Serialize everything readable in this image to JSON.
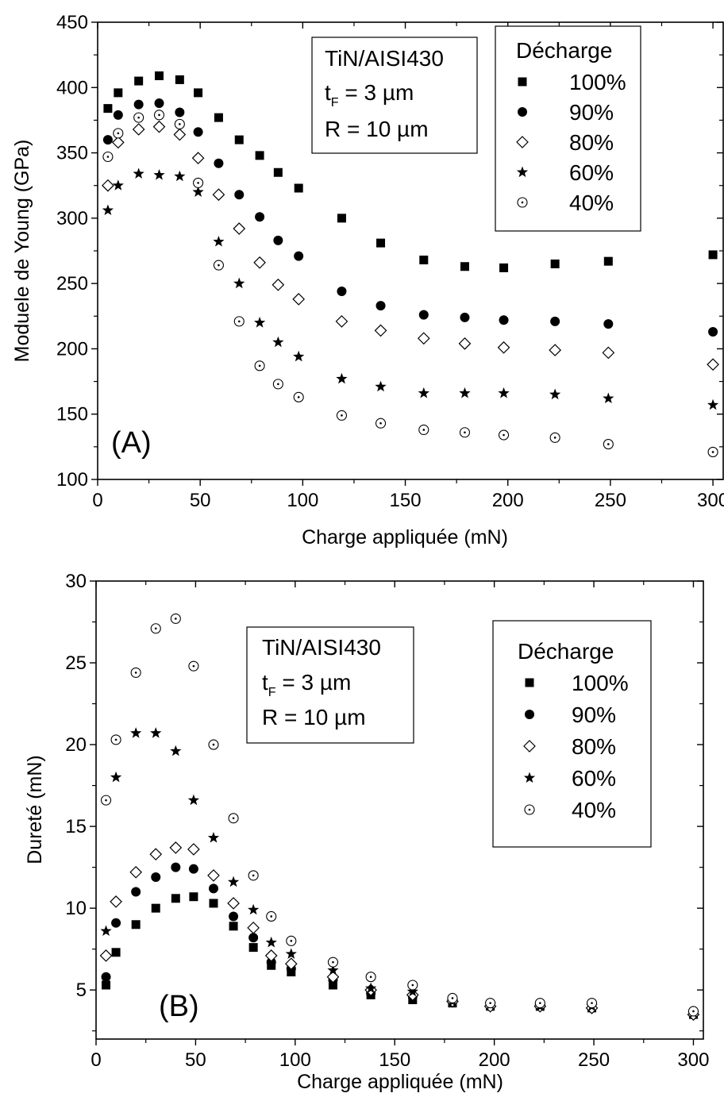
{
  "chart_data": [
    {
      "type": "scatter",
      "panel_label": "(A)",
      "xlabel": "Charge appliquée (mN)",
      "ylabel": "Moduele de Young (GPa)",
      "xlim": [
        0,
        305
      ],
      "ylim": [
        100,
        450
      ],
      "xticks": [
        "0",
        "50",
        "100",
        "150",
        "200",
        "250",
        "300"
      ],
      "yticks": [
        "100",
        "150",
        "200",
        "250",
        "300",
        "350",
        "400",
        "450"
      ],
      "annotation": {
        "line1": "TiN/AISI430",
        "line2_main": "t",
        "line2_sub": "F",
        "line2_rest": " = 3 µm",
        "line3": "R = 10 µm"
      },
      "legend": {
        "title": "Décharge",
        "position": "top-right"
      },
      "x": [
        5,
        10,
        20,
        30,
        40,
        49,
        59,
        69,
        79,
        88,
        98,
        119,
        138,
        159,
        179,
        198,
        223,
        249,
        300
      ],
      "series": [
        {
          "name": "100%",
          "marker": "square",
          "values": [
            384,
            396,
            405,
            409,
            406,
            396,
            377,
            360,
            348,
            335,
            323,
            300,
            281,
            268,
            263,
            262,
            265,
            267,
            272
          ]
        },
        {
          "name": "90%",
          "marker": "circle",
          "values": [
            360,
            379,
            387,
            388,
            381,
            366,
            342,
            318,
            301,
            283,
            271,
            244,
            233,
            226,
            224,
            222,
            221,
            219,
            213
          ]
        },
        {
          "name": "80%",
          "marker": "diamond-open",
          "values": [
            325,
            358,
            368,
            370,
            364,
            346,
            318,
            292,
            266,
            249,
            238,
            221,
            214,
            208,
            204,
            201,
            199,
            197,
            188
          ]
        },
        {
          "name": "60%",
          "marker": "star",
          "values": [
            306,
            325,
            334,
            333,
            332,
            320,
            282,
            250,
            220,
            205,
            194,
            177,
            171,
            166,
            166,
            166,
            165,
            162,
            157
          ]
        },
        {
          "name": "40%",
          "marker": "circle-dot-open",
          "values": [
            347,
            365,
            377,
            379,
            372,
            327,
            264,
            221,
            187,
            173,
            163,
            149,
            143,
            138,
            136,
            134,
            132,
            127,
            121
          ]
        }
      ]
    },
    {
      "type": "scatter",
      "panel_label": "(B)",
      "xlabel": "Charge appliquée (mN)",
      "ylabel": "Dureté (mN)",
      "xlim": [
        0,
        305
      ],
      "ylim": [
        2,
        30
      ],
      "xticks": [
        "0",
        "50",
        "100",
        "150",
        "200",
        "250",
        "300"
      ],
      "yticks": [
        "5",
        "10",
        "15",
        "20",
        "25",
        "30"
      ],
      "annotation": {
        "line1": "TiN/AISI430",
        "line2_main": "t",
        "line2_sub": "F",
        "line2_rest": " = 3 µm",
        "line3": "R = 10 µm"
      },
      "legend": {
        "title": "Décharge",
        "position": "top-right"
      },
      "x": [
        5,
        10,
        20,
        30,
        40,
        49,
        59,
        69,
        79,
        88,
        98,
        119,
        138,
        159,
        179,
        198,
        223,
        249,
        300
      ],
      "series": [
        {
          "name": "100%",
          "marker": "square",
          "values": [
            5.3,
            7.3,
            9.0,
            10.0,
            10.6,
            10.7,
            10.3,
            8.9,
            7.6,
            6.5,
            6.1,
            5.3,
            4.7,
            4.4,
            4.2,
            4.0,
            4.0,
            3.9,
            3.5
          ]
        },
        {
          "name": "90%",
          "marker": "circle",
          "values": [
            5.8,
            9.1,
            11.0,
            11.9,
            12.5,
            12.4,
            11.2,
            9.5,
            8.2,
            6.7,
            6.3,
            5.6,
            4.8,
            4.6,
            4.3,
            4.0,
            4.0,
            3.9,
            3.5
          ]
        },
        {
          "name": "80%",
          "marker": "diamond-open",
          "values": [
            7.1,
            10.4,
            12.2,
            13.3,
            13.7,
            13.6,
            12.0,
            10.3,
            8.8,
            7.1,
            6.6,
            5.8,
            5.0,
            4.7,
            4.3,
            4.0,
            4.0,
            3.9,
            3.5
          ]
        },
        {
          "name": "60%",
          "marker": "star",
          "values": [
            8.6,
            18.0,
            20.7,
            20.7,
            19.6,
            16.6,
            14.3,
            11.6,
            9.9,
            7.9,
            7.2,
            6.2,
            5.1,
            4.9,
            4.3,
            4.1,
            4.0,
            4.0,
            3.6
          ]
        },
        {
          "name": "40%",
          "marker": "circle-dot-open",
          "values": [
            16.6,
            20.3,
            24.4,
            27.1,
            27.7,
            24.8,
            20.0,
            15.5,
            12.0,
            9.5,
            8.0,
            6.7,
            5.8,
            5.3,
            4.5,
            4.2,
            4.2,
            4.2,
            3.7
          ]
        }
      ]
    }
  ]
}
